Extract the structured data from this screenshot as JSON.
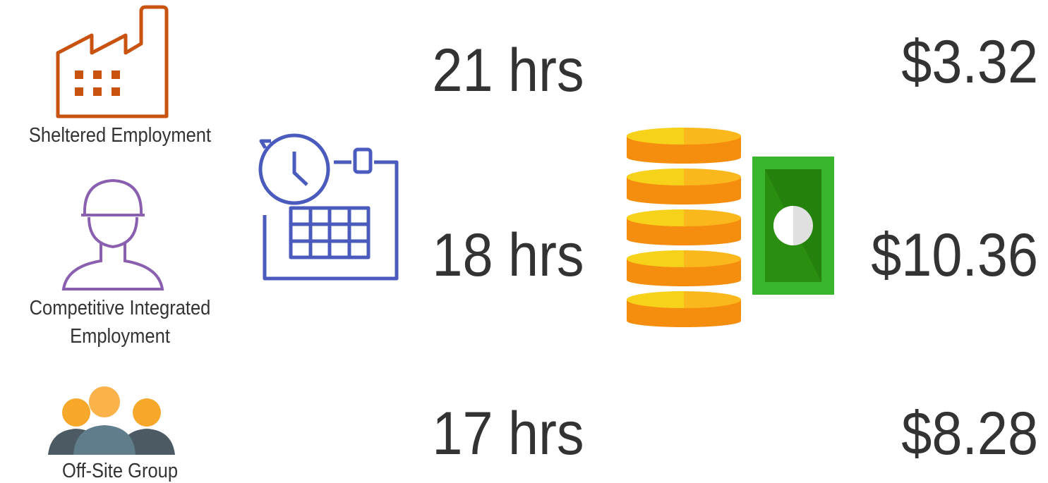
{
  "rows": [
    {
      "label": "Sheltered Employment",
      "hours": "21 hrs",
      "wage": "$3.32"
    },
    {
      "label": "Competitive Integrated Employment",
      "hours": "18 hrs",
      "wage": "$10.36"
    },
    {
      "label": "Off-Site Group",
      "hours": "17 hrs",
      "wage": "$8.28"
    }
  ]
}
